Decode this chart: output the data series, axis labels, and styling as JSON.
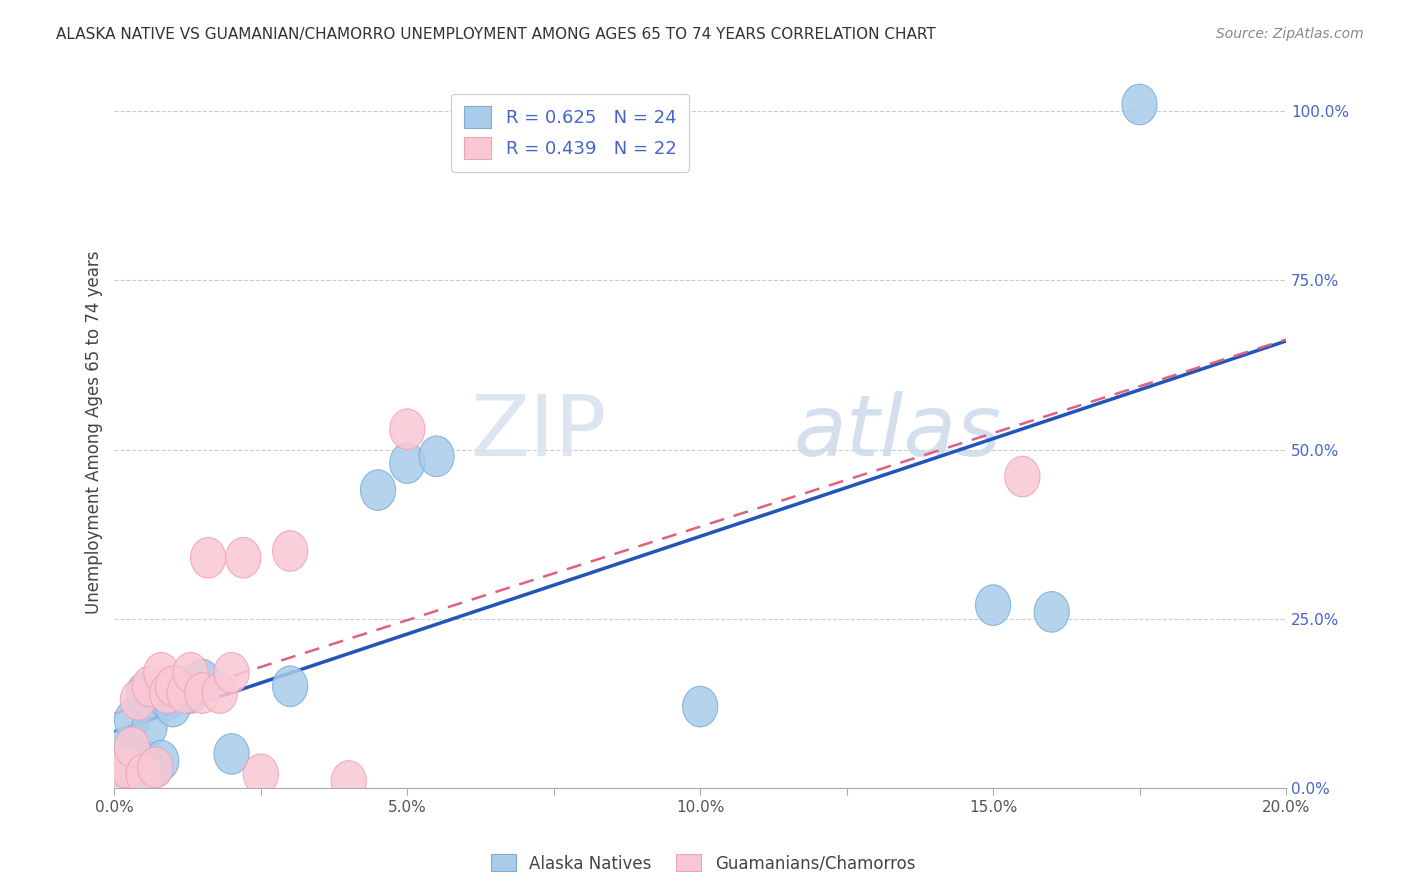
{
  "title": "ALASKA NATIVE VS GUAMANIAN/CHAMORRO UNEMPLOYMENT AMONG AGES 65 TO 74 YEARS CORRELATION CHART",
  "source": "Source: ZipAtlas.com",
  "ylabel": "Unemployment Among Ages 65 to 74 years",
  "xlim": [
    0.0,
    0.2
  ],
  "ylim": [
    0.0,
    1.05
  ],
  "xticks": [
    0.0,
    0.025,
    0.05,
    0.075,
    0.1,
    0.125,
    0.15,
    0.175,
    0.2
  ],
  "xticklabels": [
    "0.0%",
    "",
    "5.0%",
    "",
    "10.0%",
    "",
    "15.0%",
    "",
    "20.0%"
  ],
  "yticks_right": [
    0.0,
    0.25,
    0.5,
    0.75,
    1.0
  ],
  "yticklabels_right": [
    "0.0%",
    "25.0%",
    "50.0%",
    "75.0%",
    "100.0%"
  ],
  "alaska_x": [
    0.001,
    0.002,
    0.003,
    0.003,
    0.004,
    0.005,
    0.005,
    0.006,
    0.007,
    0.008,
    0.009,
    0.01,
    0.011,
    0.013,
    0.015,
    0.02,
    0.03,
    0.045,
    0.05,
    0.055,
    0.1,
    0.15,
    0.16,
    0.175
  ],
  "alaska_y": [
    0.02,
    0.06,
    0.04,
    0.1,
    0.02,
    0.04,
    0.14,
    0.09,
    0.03,
    0.04,
    0.13,
    0.12,
    0.15,
    0.14,
    0.16,
    0.05,
    0.15,
    0.44,
    0.48,
    0.49,
    0.12,
    0.27,
    0.26,
    1.01
  ],
  "guam_x": [
    0.001,
    0.002,
    0.003,
    0.004,
    0.005,
    0.006,
    0.007,
    0.008,
    0.009,
    0.01,
    0.012,
    0.013,
    0.015,
    0.016,
    0.018,
    0.02,
    0.022,
    0.025,
    0.03,
    0.04,
    0.05,
    0.155
  ],
  "guam_y": [
    0.02,
    0.03,
    0.06,
    0.13,
    0.02,
    0.15,
    0.03,
    0.17,
    0.14,
    0.15,
    0.14,
    0.17,
    0.14,
    0.34,
    0.14,
    0.17,
    0.34,
    0.02,
    0.35,
    0.01,
    0.53,
    0.46
  ],
  "alaska_R": 0.625,
  "alaska_N": 24,
  "guam_R": 0.439,
  "guam_N": 22,
  "alaska_color": "#A8CCEA",
  "alaska_edge_color": "#7BAFD4",
  "guam_color": "#F9C8D4",
  "guam_edge_color": "#F4A0B8",
  "alaska_line_color": "#2255BB",
  "guam_line_color": "#E06080",
  "legend_label_alaska": "Alaska Natives",
  "legend_label_guam": "Guamanians/Chamorros",
  "watermark_zip": "ZIP",
  "watermark_atlas": "atlas",
  "background_color": "#ffffff",
  "grid_color": "#cccccc",
  "title_color": "#333333",
  "right_axis_color": "#4466cc"
}
